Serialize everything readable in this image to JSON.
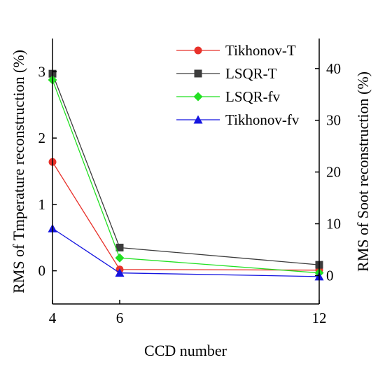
{
  "chart_data": {
    "type": "line",
    "x": [
      4,
      6,
      12
    ],
    "xlabel": "CCD number",
    "ylabel": "RMS of Tmperature reconstruction (%)",
    "y2label": "RMS of Soot reconstruction (%)",
    "xlim": [
      4,
      12
    ],
    "ylim": [
      -0.5,
      3.5
    ],
    "y2lim": [
      -5.5,
      45.8
    ],
    "xticks": [
      "4",
      "6",
      "12"
    ],
    "yticks": [
      "0",
      "1",
      "2",
      "3"
    ],
    "y2ticks": [
      "0",
      "10",
      "20",
      "30",
      "40"
    ],
    "grid": false,
    "legend_position": "top-right",
    "series": [
      {
        "name": "Tikhonov-T",
        "axis": "left",
        "values": [
          1.64,
          0.02,
          0.01
        ],
        "color": "#e8312a",
        "marker": "circle"
      },
      {
        "name": "LSQR-T",
        "axis": "left",
        "values": [
          2.97,
          0.35,
          0.09
        ],
        "color": "#3c3c3c",
        "marker": "square"
      },
      {
        "name": "LSQR-fv",
        "axis": "right",
        "values": [
          37.8,
          3.4,
          0.5
        ],
        "color": "#22e022",
        "marker": "diamond"
      },
      {
        "name": "Tikhonov-fv",
        "axis": "right",
        "values": [
          9.1,
          0.5,
          -0.2
        ],
        "color": "#1515e0",
        "marker": "triangle"
      }
    ]
  }
}
